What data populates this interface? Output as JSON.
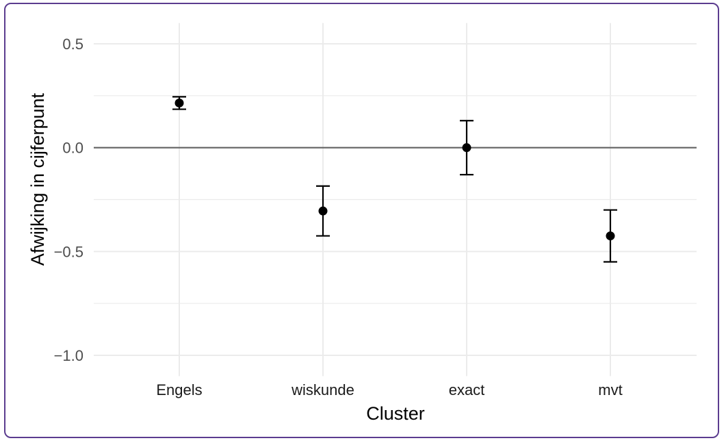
{
  "chart_data": {
    "type": "scatter",
    "categories": [
      "Engels",
      "wiskunde",
      "exact",
      "mvt"
    ],
    "series": [
      {
        "values": [
          0.215,
          -0.305,
          0.0,
          -0.425
        ],
        "lower": [
          0.185,
          -0.425,
          -0.13,
          -0.55
        ],
        "upper": [
          0.245,
          -0.185,
          0.13,
          -0.3
        ]
      }
    ],
    "title": "",
    "xlabel": "Cluster",
    "ylabel": "Afwijking in cijferpunt",
    "ylim": [
      -1.1,
      0.6
    ],
    "yticks": [
      0.5,
      0.0,
      -0.5,
      -1.0
    ],
    "ytick_labels": [
      "0.5",
      "0.0",
      "−0.5",
      "−1.0"
    ],
    "reference_line": 0.0,
    "grid": true,
    "legend": "none"
  },
  "colors": {
    "frame": "#5b3c8f",
    "grid": "#ebebeb",
    "reference_line": "#636363",
    "points": "#000000",
    "tick_labels": "#4d4d4d"
  }
}
